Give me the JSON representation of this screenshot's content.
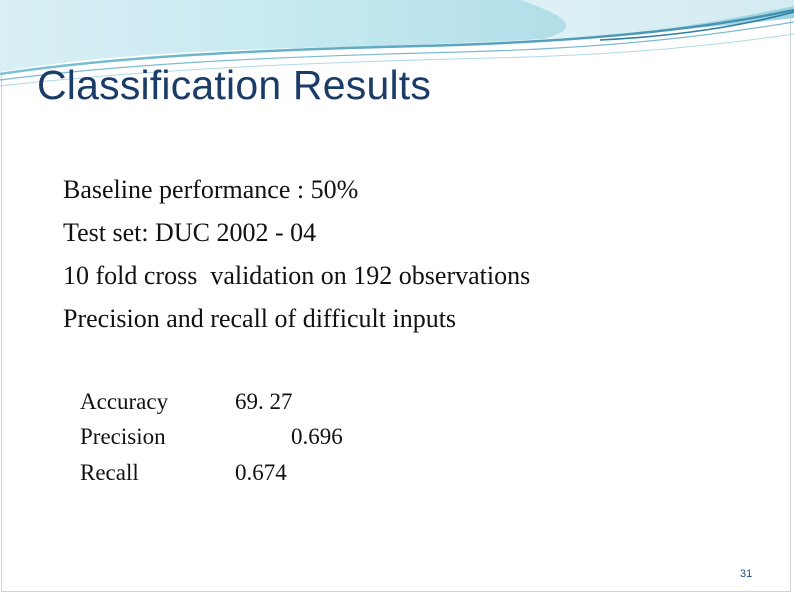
{
  "slide": {
    "title": "Classification Results",
    "bullets": [
      "Baseline performance : 50%",
      "Test set: DUC 2002 - 04",
      "10 fold cross  validation on 192 observations",
      "Precision and recall of difficult inputs"
    ],
    "metrics": [
      {
        "name": "Accuracy",
        "value": "69. 27"
      },
      {
        "name": "Precision",
        "value": "0.696"
      },
      {
        "name": "Recall",
        "value": "0.674"
      }
    ],
    "page_number": "31"
  },
  "theme": {
    "title_color": "#1a3c66",
    "swoosh_light": "#bfe6ee",
    "swoosh_mid": "#7ec3d3",
    "swoosh_dark": "#3f8fb0"
  }
}
